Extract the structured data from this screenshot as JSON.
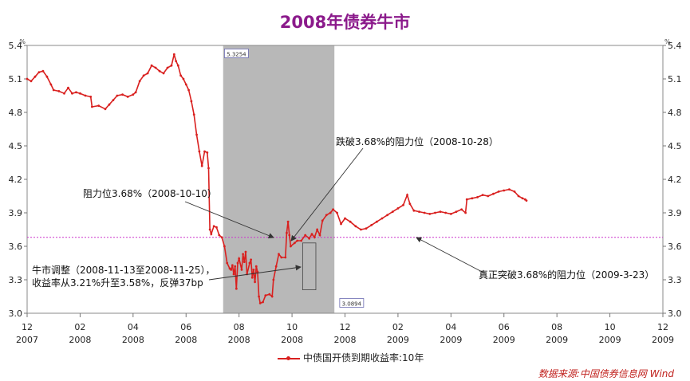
{
  "title": "2008年债券牛市",
  "source": "数据来源:中国债券信息网 Wind",
  "chart_data": {
    "type": "line",
    "series": [
      {
        "name": "中债国开债到期收益率:10年",
        "color": "#d9201f",
        "points": [
          [
            0,
            5.1
          ],
          [
            0.15,
            5.08
          ],
          [
            0.3,
            5.12
          ],
          [
            0.45,
            5.16
          ],
          [
            0.6,
            5.17
          ],
          [
            0.75,
            5.12
          ],
          [
            0.9,
            5.05
          ],
          [
            1.0,
            5.0
          ],
          [
            1.2,
            4.99
          ],
          [
            1.4,
            4.97
          ],
          [
            1.55,
            5.02
          ],
          [
            1.7,
            4.97
          ],
          [
            1.85,
            4.98
          ],
          [
            2.0,
            4.97
          ],
          [
            2.2,
            4.95
          ],
          [
            2.4,
            4.94
          ],
          [
            2.45,
            4.85
          ],
          [
            2.7,
            4.86
          ],
          [
            2.95,
            4.83
          ],
          [
            3.1,
            4.87
          ],
          [
            3.25,
            4.91
          ],
          [
            3.4,
            4.95
          ],
          [
            3.6,
            4.96
          ],
          [
            3.8,
            4.94
          ],
          [
            4.0,
            4.96
          ],
          [
            4.1,
            4.98
          ],
          [
            4.25,
            5.08
          ],
          [
            4.4,
            5.13
          ],
          [
            4.55,
            5.15
          ],
          [
            4.7,
            5.22
          ],
          [
            4.85,
            5.2
          ],
          [
            5.0,
            5.17
          ],
          [
            5.15,
            5.15
          ],
          [
            5.3,
            5.2
          ],
          [
            5.45,
            5.22
          ],
          [
            5.55,
            5.32
          ],
          [
            5.62,
            5.26
          ],
          [
            5.7,
            5.22
          ],
          [
            5.8,
            5.13
          ],
          [
            5.9,
            5.1
          ],
          [
            6.0,
            5.05
          ],
          [
            6.1,
            5.0
          ],
          [
            6.2,
            4.9
          ],
          [
            6.3,
            4.78
          ],
          [
            6.4,
            4.6
          ],
          [
            6.5,
            4.45
          ],
          [
            6.6,
            4.32
          ],
          [
            6.7,
            4.45
          ],
          [
            6.8,
            4.44
          ],
          [
            6.85,
            4.3
          ],
          [
            6.9,
            3.75
          ],
          [
            6.95,
            3.71
          ],
          [
            7.05,
            3.78
          ],
          [
            7.15,
            3.77
          ],
          [
            7.25,
            3.7
          ],
          [
            7.35,
            3.68
          ],
          [
            7.45,
            3.6
          ],
          [
            7.55,
            3.45
          ],
          [
            7.65,
            3.4
          ],
          [
            7.7,
            3.39
          ],
          [
            7.75,
            3.43
          ],
          [
            7.8,
            3.35
          ],
          [
            7.85,
            3.42
          ],
          [
            7.9,
            3.22
          ],
          [
            7.95,
            3.45
          ],
          [
            8.0,
            3.49
          ],
          [
            8.1,
            3.39
          ],
          [
            8.15,
            3.53
          ],
          [
            8.2,
            3.46
          ],
          [
            8.25,
            3.55
          ],
          [
            8.3,
            3.35
          ],
          [
            8.4,
            3.45
          ],
          [
            8.45,
            3.48
          ],
          [
            8.5,
            3.32
          ],
          [
            8.55,
            3.39
          ],
          [
            8.6,
            3.28
          ],
          [
            8.65,
            3.42
          ],
          [
            8.7,
            3.37
          ],
          [
            8.75,
            3.15
          ],
          [
            8.8,
            3.09
          ],
          [
            8.9,
            3.1
          ],
          [
            9.0,
            3.16
          ],
          [
            9.15,
            3.17
          ],
          [
            9.25,
            3.15
          ],
          [
            9.3,
            3.3
          ],
          [
            9.4,
            3.42
          ],
          [
            9.5,
            3.53
          ],
          [
            9.6,
            3.5
          ],
          [
            9.75,
            3.5
          ],
          [
            9.8,
            3.72
          ],
          [
            9.85,
            3.82
          ],
          [
            9.9,
            3.7
          ],
          [
            9.95,
            3.6
          ],
          [
            10.1,
            3.63
          ],
          [
            10.2,
            3.65
          ],
          [
            10.35,
            3.65
          ],
          [
            10.5,
            3.7
          ],
          [
            10.65,
            3.67
          ],
          [
            10.75,
            3.71
          ],
          [
            10.85,
            3.68
          ],
          [
            10.95,
            3.75
          ],
          [
            11.05,
            3.7
          ],
          [
            11.15,
            3.83
          ],
          [
            11.3,
            3.88
          ],
          [
            11.45,
            3.9
          ],
          [
            11.55,
            3.93
          ],
          [
            11.7,
            3.9
          ],
          [
            11.85,
            3.8
          ],
          [
            12.0,
            3.85
          ],
          [
            12.2,
            3.82
          ],
          [
            12.4,
            3.78
          ],
          [
            12.6,
            3.75
          ],
          [
            12.8,
            3.76
          ],
          [
            13.0,
            3.79
          ],
          [
            13.2,
            3.82
          ],
          [
            13.4,
            3.85
          ],
          [
            13.6,
            3.88
          ],
          [
            13.8,
            3.91
          ],
          [
            14.0,
            3.94
          ],
          [
            14.2,
            3.97
          ],
          [
            14.35,
            4.06
          ],
          [
            14.45,
            3.98
          ],
          [
            14.6,
            3.92
          ],
          [
            14.8,
            3.91
          ],
          [
            15.0,
            3.9
          ],
          [
            15.2,
            3.89
          ],
          [
            15.4,
            3.9
          ],
          [
            15.6,
            3.91
          ],
          [
            15.8,
            3.9
          ],
          [
            16.0,
            3.89
          ],
          [
            16.2,
            3.91
          ],
          [
            16.4,
            3.93
          ],
          [
            16.55,
            3.9
          ],
          [
            16.6,
            4.02
          ],
          [
            16.8,
            4.03
          ],
          [
            17.0,
            4.04
          ],
          [
            17.2,
            4.06
          ],
          [
            17.4,
            4.05
          ],
          [
            17.6,
            4.07
          ],
          [
            17.8,
            4.09
          ],
          [
            18.0,
            4.1
          ],
          [
            18.2,
            4.11
          ],
          [
            18.4,
            4.09
          ],
          [
            18.55,
            4.05
          ],
          [
            18.7,
            4.03
          ],
          [
            18.8,
            4.02
          ],
          [
            18.85,
            4.01
          ]
        ]
      }
    ],
    "x_ticks": [
      {
        "month": "12",
        "year": "2007"
      },
      {
        "month": "02",
        "year": "2008"
      },
      {
        "month": "04",
        "year": "2008"
      },
      {
        "month": "06",
        "year": "2008"
      },
      {
        "month": "08",
        "year": "2008"
      },
      {
        "month": "10",
        "year": "2008"
      },
      {
        "month": "12",
        "year": "2008"
      },
      {
        "month": "02",
        "year": "2009"
      },
      {
        "month": "04",
        "year": "2009"
      },
      {
        "month": "06",
        "year": "2009"
      },
      {
        "month": "08",
        "year": "2009"
      },
      {
        "month": "10",
        "year": "2009"
      },
      {
        "month": "12",
        "year": "2009"
      }
    ],
    "y_ticks": [
      "5.4",
      "5.1",
      "4.8",
      "4.5",
      "4.2",
      "3.9",
      "3.6",
      "3.3",
      "3.0"
    ],
    "ylim": [
      3.0,
      5.4
    ],
    "y_unit": "%",
    "reference_line": {
      "value": 3.68,
      "color": "#cc33cc"
    },
    "shaded_region": {
      "x": [
        7.4,
        11.6
      ],
      "color": "#b8b8b8"
    },
    "highlight_box": {
      "x": [
        10.4,
        10.9
      ],
      "y": [
        3.21,
        3.63
      ]
    },
    "value_labels": [
      {
        "text": "5.3254",
        "x": 7.45,
        "y": 5.3254
      },
      {
        "text": "3.0894",
        "x": 11.8,
        "y": 3.0894
      }
    ],
    "annotations": [
      {
        "text": "跌破3.68%的阻力位（2008-10-28）"
      },
      {
        "text": "阻力位3.68%（2008-10-10）"
      },
      {
        "text": "牛市调整（2008-11-13至2008-11-25），"
      },
      {
        "text": "收益率从3.21%升至3.58%，反弹37bp"
      },
      {
        "text": "真正突破3.68%的阻力位（2009-3-23）"
      }
    ]
  }
}
